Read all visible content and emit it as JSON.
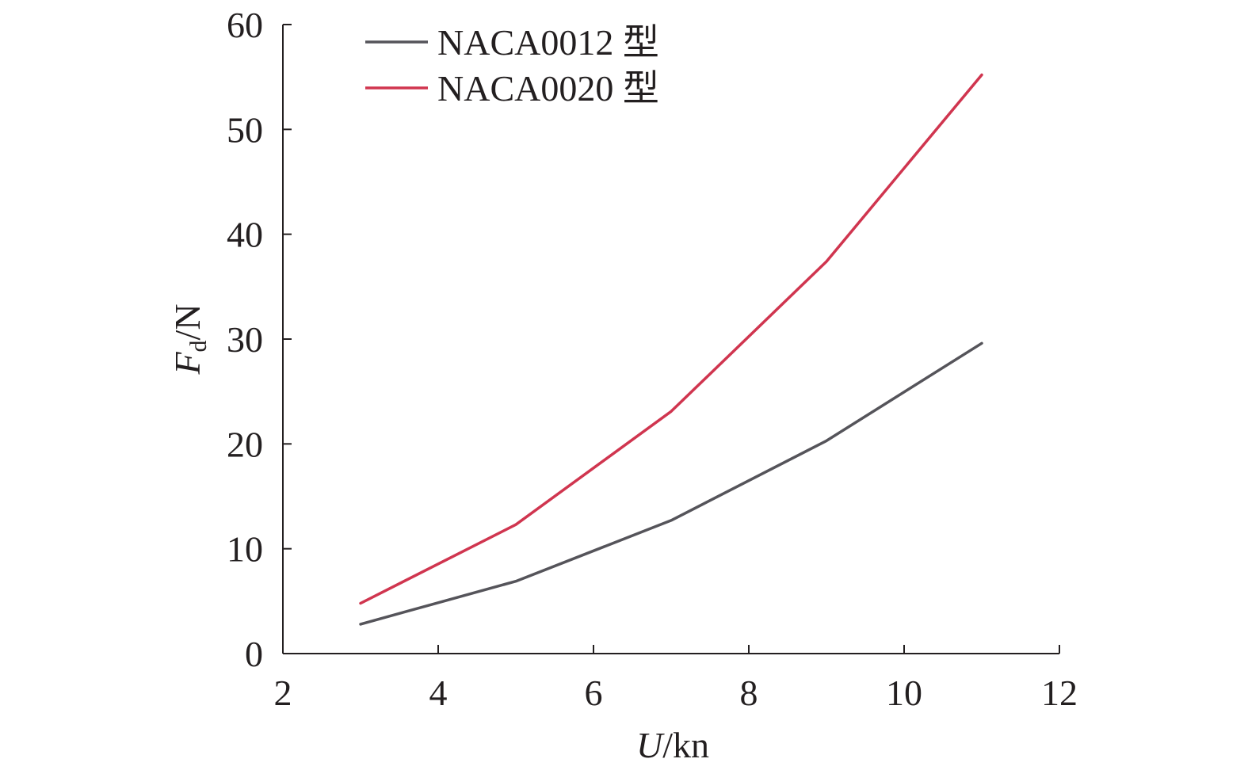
{
  "chart_data": {
    "type": "line",
    "xlabel": {
      "var": "U",
      "unit": "/kn"
    },
    "ylabel": {
      "var": "F",
      "sub": "d",
      "unit": "/N"
    },
    "xlim": [
      2,
      12
    ],
    "ylim": [
      0,
      60
    ],
    "x_ticks": [
      2,
      4,
      6,
      8,
      10,
      12
    ],
    "y_ticks": [
      0,
      10,
      20,
      30,
      40,
      50,
      60
    ],
    "grid": false,
    "legend_position": "top-left",
    "series": [
      {
        "name": "NACA0012 型",
        "color": "#55545a",
        "x": [
          3,
          5,
          7,
          9,
          11
        ],
        "y": [
          2.8,
          6.9,
          12.7,
          20.3,
          29.6
        ]
      },
      {
        "name": "NACA0020 型",
        "color": "#d0354f",
        "x": [
          3,
          5,
          7,
          9,
          11
        ],
        "y": [
          4.8,
          12.3,
          23.1,
          37.4,
          55.2
        ]
      }
    ]
  }
}
